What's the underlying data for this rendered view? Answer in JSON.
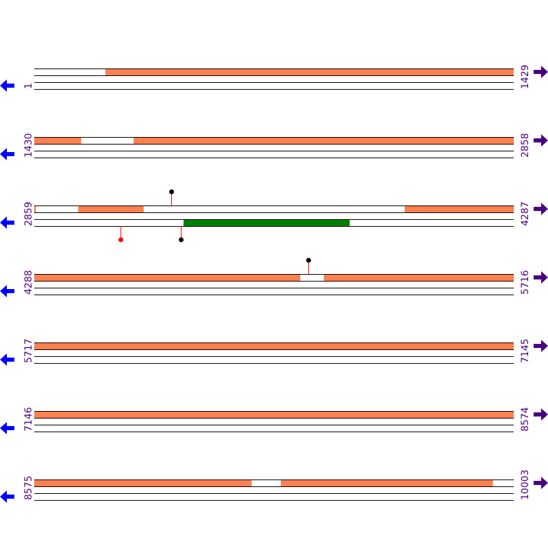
{
  "colors": {
    "feature": "#ff8050",
    "cds": "#008000",
    "track_line": "#000000",
    "left_arrow": "#0000ff",
    "right_arrow": "#4b0082",
    "label": "#4b0082",
    "pin_black": "#000000",
    "pin_red": "#ff0000",
    "pin_stem": "#ff0000"
  },
  "icons": {
    "left": "arrow-left-icon",
    "right": "arrow-right-icon"
  },
  "rows": [
    {
      "start": "1",
      "end": "1429",
      "s": 1,
      "e": 1429,
      "features": [
        [
          213,
          1429
        ]
      ],
      "cds": [],
      "pins": []
    },
    {
      "start": "1430",
      "end": "2858",
      "s": 1430,
      "e": 2858,
      "features": [
        [
          1430,
          1569
        ],
        [
          1726,
          2858
        ]
      ],
      "cds": [],
      "pins": []
    },
    {
      "start": "2859",
      "end": "4287",
      "s": 2859,
      "e": 4287,
      "features": [
        [
          2859,
          2863
        ],
        [
          2990,
          3184
        ],
        [
          3963,
          4287
        ]
      ],
      "cds": [
        [
          3304,
          3798
        ]
      ],
      "pins": [
        {
          "pos": 3267,
          "side": "top",
          "color": "black"
        },
        {
          "pos": 3116,
          "side": "bottom",
          "color": "red"
        },
        {
          "pos": 3296,
          "side": "bottom",
          "color": "black"
        }
      ]
    },
    {
      "start": "4288",
      "end": "5716",
      "s": 4288,
      "e": 5716,
      "features": [
        [
          4288,
          5080
        ],
        [
          5151,
          5716
        ]
      ],
      "cds": [],
      "pins": [
        {
          "pos": 5104,
          "side": "top",
          "color": "black"
        }
      ]
    },
    {
      "start": "5717",
      "end": "7145",
      "s": 5717,
      "e": 7145,
      "features": [
        [
          5717,
          7145
        ]
      ],
      "cds": [],
      "pins": []
    },
    {
      "start": "7146",
      "end": "8574",
      "s": 7146,
      "e": 8574,
      "features": [
        [
          7146,
          8574
        ]
      ],
      "cds": [],
      "pins": []
    },
    {
      "start": "8575",
      "end": "10003",
      "s": 8575,
      "e": 10003,
      "features": [
        [
          8575,
          9222
        ],
        [
          9310,
          9941
        ]
      ],
      "cds": [],
      "pins": []
    }
  ]
}
